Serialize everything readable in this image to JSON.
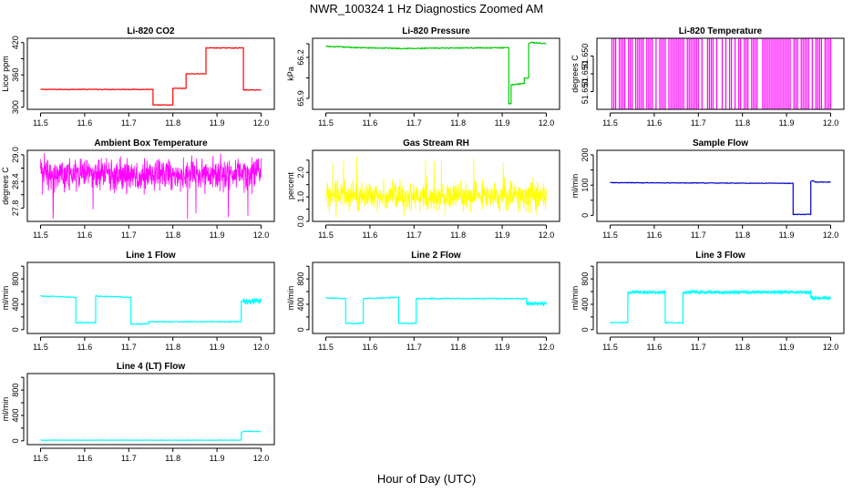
{
  "figure": {
    "title": "NWR_100324  1 Hz Diagnostics Zoomed AM",
    "xlabel": "Hour of Day (UTC)"
  },
  "chart_data": [
    {
      "type": "line",
      "title": "Li-820 CO2",
      "ylabel": "Licor ppm",
      "color": "#ff0000",
      "xlim": [
        11.47,
        12.03
      ],
      "ylim": [
        296,
        428
      ],
      "xticks": [
        "11.5",
        "11.6",
        "11.7",
        "11.8",
        "11.9",
        "12.0"
      ],
      "xtick_values": [
        11.5,
        11.6,
        11.7,
        11.8,
        11.9,
        12.0
      ],
      "yticks": [
        "300",
        "360",
        "420"
      ],
      "ytick_values": [
        300,
        360,
        420
      ],
      "minor_yticks": [
        330,
        390
      ],
      "series": [
        {
          "name": "CO2",
          "noise": 0.6,
          "points": [
            [
              11.5,
              333
            ],
            [
              11.755,
              333
            ],
            [
              11.755,
              304
            ],
            [
              11.8,
              304
            ],
            [
              11.8,
              335
            ],
            [
              11.83,
              335
            ],
            [
              11.83,
              362
            ],
            [
              11.875,
              362
            ],
            [
              11.875,
              410
            ],
            [
              11.96,
              410
            ],
            [
              11.96,
              332
            ],
            [
              12.0,
              332
            ]
          ]
        }
      ]
    },
    {
      "type": "line",
      "title": "Li-820 Pressure",
      "ylabel": "kPa",
      "color": "#00cc00",
      "xlim": [
        11.47,
        12.03
      ],
      "ylim": [
        65.82,
        66.34
      ],
      "xticks": [
        "11.5",
        "11.6",
        "11.7",
        "11.8",
        "11.9",
        "12.0"
      ],
      "xtick_values": [
        11.5,
        11.6,
        11.7,
        11.8,
        11.9,
        12.0
      ],
      "yticks": [
        "65.9",
        "66.2"
      ],
      "ytick_values": [
        65.9,
        66.2
      ],
      "minor_yticks": [
        66.05,
        66.3
      ],
      "series": [
        {
          "name": "Pressure",
          "noise": 0.004,
          "points": [
            [
              11.5,
              66.28
            ],
            [
              11.59,
              66.27
            ],
            [
              11.7,
              66.265
            ],
            [
              11.8,
              66.27
            ],
            [
              11.9,
              66.27
            ],
            [
              11.915,
              66.27
            ],
            [
              11.915,
              65.86
            ],
            [
              11.92,
              65.86
            ],
            [
              11.92,
              66.0
            ],
            [
              11.95,
              66.01
            ],
            [
              11.95,
              66.05
            ],
            [
              11.96,
              66.05
            ],
            [
              11.96,
              66.3
            ],
            [
              11.965,
              66.31
            ],
            [
              12.0,
              66.3
            ]
          ]
        }
      ]
    },
    {
      "type": "line",
      "title": "Li-820 Temperature",
      "ylabel": "degrees C",
      "color": "#ff00ff",
      "xlim": [
        11.47,
        12.03
      ],
      "ylim": [
        51.6498,
        51.6502
      ],
      "xticks": [
        "11.5",
        "11.6",
        "11.7",
        "11.8",
        "11.9",
        "12.0"
      ],
      "xtick_values": [
        11.5,
        11.6,
        11.7,
        11.8,
        11.9,
        12.0
      ],
      "yticks": [
        "51.650",
        "51.650",
        "51.650"
      ],
      "ytick_values": [
        51.6499,
        51.65,
        51.6501
      ],
      "minor_yticks": [],
      "series": [
        {
          "name": "Temperature",
          "pattern": "binary",
          "low": 51.6498,
          "high": 51.6502,
          "x0": 11.5,
          "x1": 12.0
        }
      ]
    },
    {
      "type": "line",
      "title": "Ambient Box Temperature",
      "ylabel": "degrees C",
      "color": "#ff00ff",
      "xlim": [
        11.47,
        12.03
      ],
      "ylim": [
        27.5,
        29.1
      ],
      "xticks": [
        "11.5",
        "11.6",
        "11.7",
        "11.8",
        "11.9",
        "12.0"
      ],
      "xtick_values": [
        11.5,
        11.6,
        11.7,
        11.8,
        11.9,
        12.0
      ],
      "yticks": [
        "27.8",
        "28.4",
        "29.0"
      ],
      "ytick_values": [
        27.8,
        28.4,
        29.0
      ],
      "minor_yticks": [
        28.1,
        28.7
      ],
      "series": [
        {
          "name": "Box temp",
          "pattern": "noisy",
          "center": 28.55,
          "spread": 0.22,
          "min": 27.55,
          "max": 29.05,
          "x0": 11.5,
          "x1": 12.0
        }
      ]
    },
    {
      "type": "line",
      "title": "Gas Stream RH",
      "ylabel": "percent",
      "color": "#ffff00",
      "xlim": [
        11.47,
        12.03
      ],
      "ylim": [
        0.0,
        2.9
      ],
      "xticks": [
        "11.5",
        "11.6",
        "11.7",
        "11.8",
        "11.9",
        "12.0"
      ],
      "xtick_values": [
        11.5,
        11.6,
        11.7,
        11.8,
        11.9,
        12.0
      ],
      "yticks": [
        "0.0",
        "1.0",
        "2.0"
      ],
      "ytick_values": [
        0.0,
        1.0,
        2.0
      ],
      "minor_yticks": [
        0.5,
        1.5,
        2.5
      ],
      "series": [
        {
          "name": "RH",
          "pattern": "noisy",
          "center": 1.05,
          "spread": 0.35,
          "min": 0.05,
          "max": 2.7,
          "x0": 11.5,
          "x1": 12.0
        }
      ]
    },
    {
      "type": "line",
      "title": "Sample Flow",
      "ylabel": "ml/min",
      "color": "#0000cc",
      "xlim": [
        11.47,
        12.03
      ],
      "ylim": [
        -20,
        215
      ],
      "xticks": [
        "11.5",
        "11.6",
        "11.7",
        "11.8",
        "11.9",
        "12.0"
      ],
      "xtick_values": [
        11.5,
        11.6,
        11.7,
        11.8,
        11.9,
        12.0
      ],
      "yticks": [
        "0",
        "100",
        "200"
      ],
      "ytick_values": [
        0,
        100,
        200
      ],
      "minor_yticks": [
        50,
        150
      ],
      "series": [
        {
          "name": "Sample flow",
          "noise": 1.0,
          "points": [
            [
              11.5,
              108
            ],
            [
              11.9,
              106
            ],
            [
              11.915,
              106
            ],
            [
              11.915,
              3
            ],
            [
              11.955,
              3
            ],
            [
              11.955,
              112
            ],
            [
              11.96,
              115
            ],
            [
              11.965,
              110
            ],
            [
              12.0,
              110
            ]
          ]
        }
      ]
    },
    {
      "type": "line",
      "title": "Line 1 Flow",
      "ylabel": "ml/min",
      "color": "#00ffff",
      "xlim": [
        11.47,
        12.03
      ],
      "ylim": [
        -60,
        1060
      ],
      "xticks": [
        "11.5",
        "11.6",
        "11.7",
        "11.8",
        "11.9",
        "12.0"
      ],
      "xtick_values": [
        11.5,
        11.6,
        11.7,
        11.8,
        11.9,
        12.0
      ],
      "yticks": [
        "0",
        "400",
        "800"
      ],
      "ytick_values": [
        0,
        400,
        800
      ],
      "minor_yticks": [
        200,
        600,
        1000
      ],
      "series": [
        {
          "name": "Line 1",
          "noise": 8,
          "band": [
            [
              11.96,
              12.0,
              90
            ]
          ],
          "points": [
            [
              11.5,
              530
            ],
            [
              11.58,
              510
            ],
            [
              11.58,
              110
            ],
            [
              11.625,
              110
            ],
            [
              11.625,
              530
            ],
            [
              11.705,
              510
            ],
            [
              11.705,
              90
            ],
            [
              11.745,
              90
            ],
            [
              11.745,
              125
            ],
            [
              11.955,
              125
            ],
            [
              11.955,
              450
            ],
            [
              12.0,
              450
            ]
          ]
        }
      ]
    },
    {
      "type": "line",
      "title": "Line 2 Flow",
      "ylabel": "ml/min",
      "color": "#00ffff",
      "xlim": [
        11.47,
        12.03
      ],
      "ylim": [
        -60,
        1060
      ],
      "xticks": [
        "11.5",
        "11.6",
        "11.7",
        "11.8",
        "11.9",
        "12.0"
      ],
      "xtick_values": [
        11.5,
        11.6,
        11.7,
        11.8,
        11.9,
        12.0
      ],
      "yticks": [
        "0",
        "400",
        "800"
      ],
      "ytick_values": [
        0,
        400,
        800
      ],
      "minor_yticks": [
        200,
        600,
        1000
      ],
      "series": [
        {
          "name": "Line 2",
          "noise": 8,
          "band": [
            [
              11.955,
              12.0,
              60
            ]
          ],
          "points": [
            [
              11.5,
              500
            ],
            [
              11.545,
              490
            ],
            [
              11.545,
              100
            ],
            [
              11.585,
              100
            ],
            [
              11.585,
              490
            ],
            [
              11.665,
              510
            ],
            [
              11.665,
              100
            ],
            [
              11.705,
              100
            ],
            [
              11.705,
              490
            ],
            [
              11.955,
              490
            ],
            [
              11.955,
              410
            ],
            [
              12.0,
              410
            ]
          ]
        }
      ]
    },
    {
      "type": "line",
      "title": "Line 3 Flow",
      "ylabel": "ml/min",
      "color": "#00ffff",
      "xlim": [
        11.47,
        12.03
      ],
      "ylim": [
        -60,
        1060
      ],
      "xticks": [
        "11.5",
        "11.6",
        "11.7",
        "11.8",
        "11.9",
        "12.0"
      ],
      "xtick_values": [
        11.5,
        11.6,
        11.7,
        11.8,
        11.9,
        12.0
      ],
      "yticks": [
        "0",
        "400",
        "800"
      ],
      "ytick_values": [
        0,
        400,
        800
      ],
      "minor_yticks": [
        200,
        600,
        1000
      ],
      "series": [
        {
          "name": "Line 3",
          "noise": 8,
          "band": [
            [
              11.54,
              11.625,
              50
            ],
            [
              11.665,
              11.955,
              50
            ],
            [
              11.955,
              12.0,
              60
            ]
          ],
          "points": [
            [
              11.5,
              110
            ],
            [
              11.54,
              110
            ],
            [
              11.54,
              590
            ],
            [
              11.625,
              590
            ],
            [
              11.625,
              110
            ],
            [
              11.665,
              110
            ],
            [
              11.665,
              590
            ],
            [
              11.955,
              590
            ],
            [
              11.955,
              500
            ],
            [
              12.0,
              500
            ]
          ]
        }
      ]
    },
    {
      "type": "line",
      "title": "Line 4 (LT) Flow",
      "ylabel": "ml/min",
      "color": "#00ffff",
      "xlim": [
        11.47,
        12.03
      ],
      "ylim": [
        -60,
        1060
      ],
      "xticks": [
        "11.5",
        "11.6",
        "11.7",
        "11.8",
        "11.9",
        "12.0"
      ],
      "xtick_values": [
        11.5,
        11.6,
        11.7,
        11.8,
        11.9,
        12.0
      ],
      "yticks": [
        "0",
        "400",
        "800"
      ],
      "ytick_values": [
        0,
        400,
        800
      ],
      "minor_yticks": [
        200,
        600,
        1000
      ],
      "series": [
        {
          "name": "Line 4",
          "noise": 3,
          "points": [
            [
              11.5,
              10
            ],
            [
              11.955,
              10
            ],
            [
              11.955,
              130
            ],
            [
              11.96,
              150
            ],
            [
              12.0,
              145
            ]
          ]
        }
      ]
    }
  ]
}
